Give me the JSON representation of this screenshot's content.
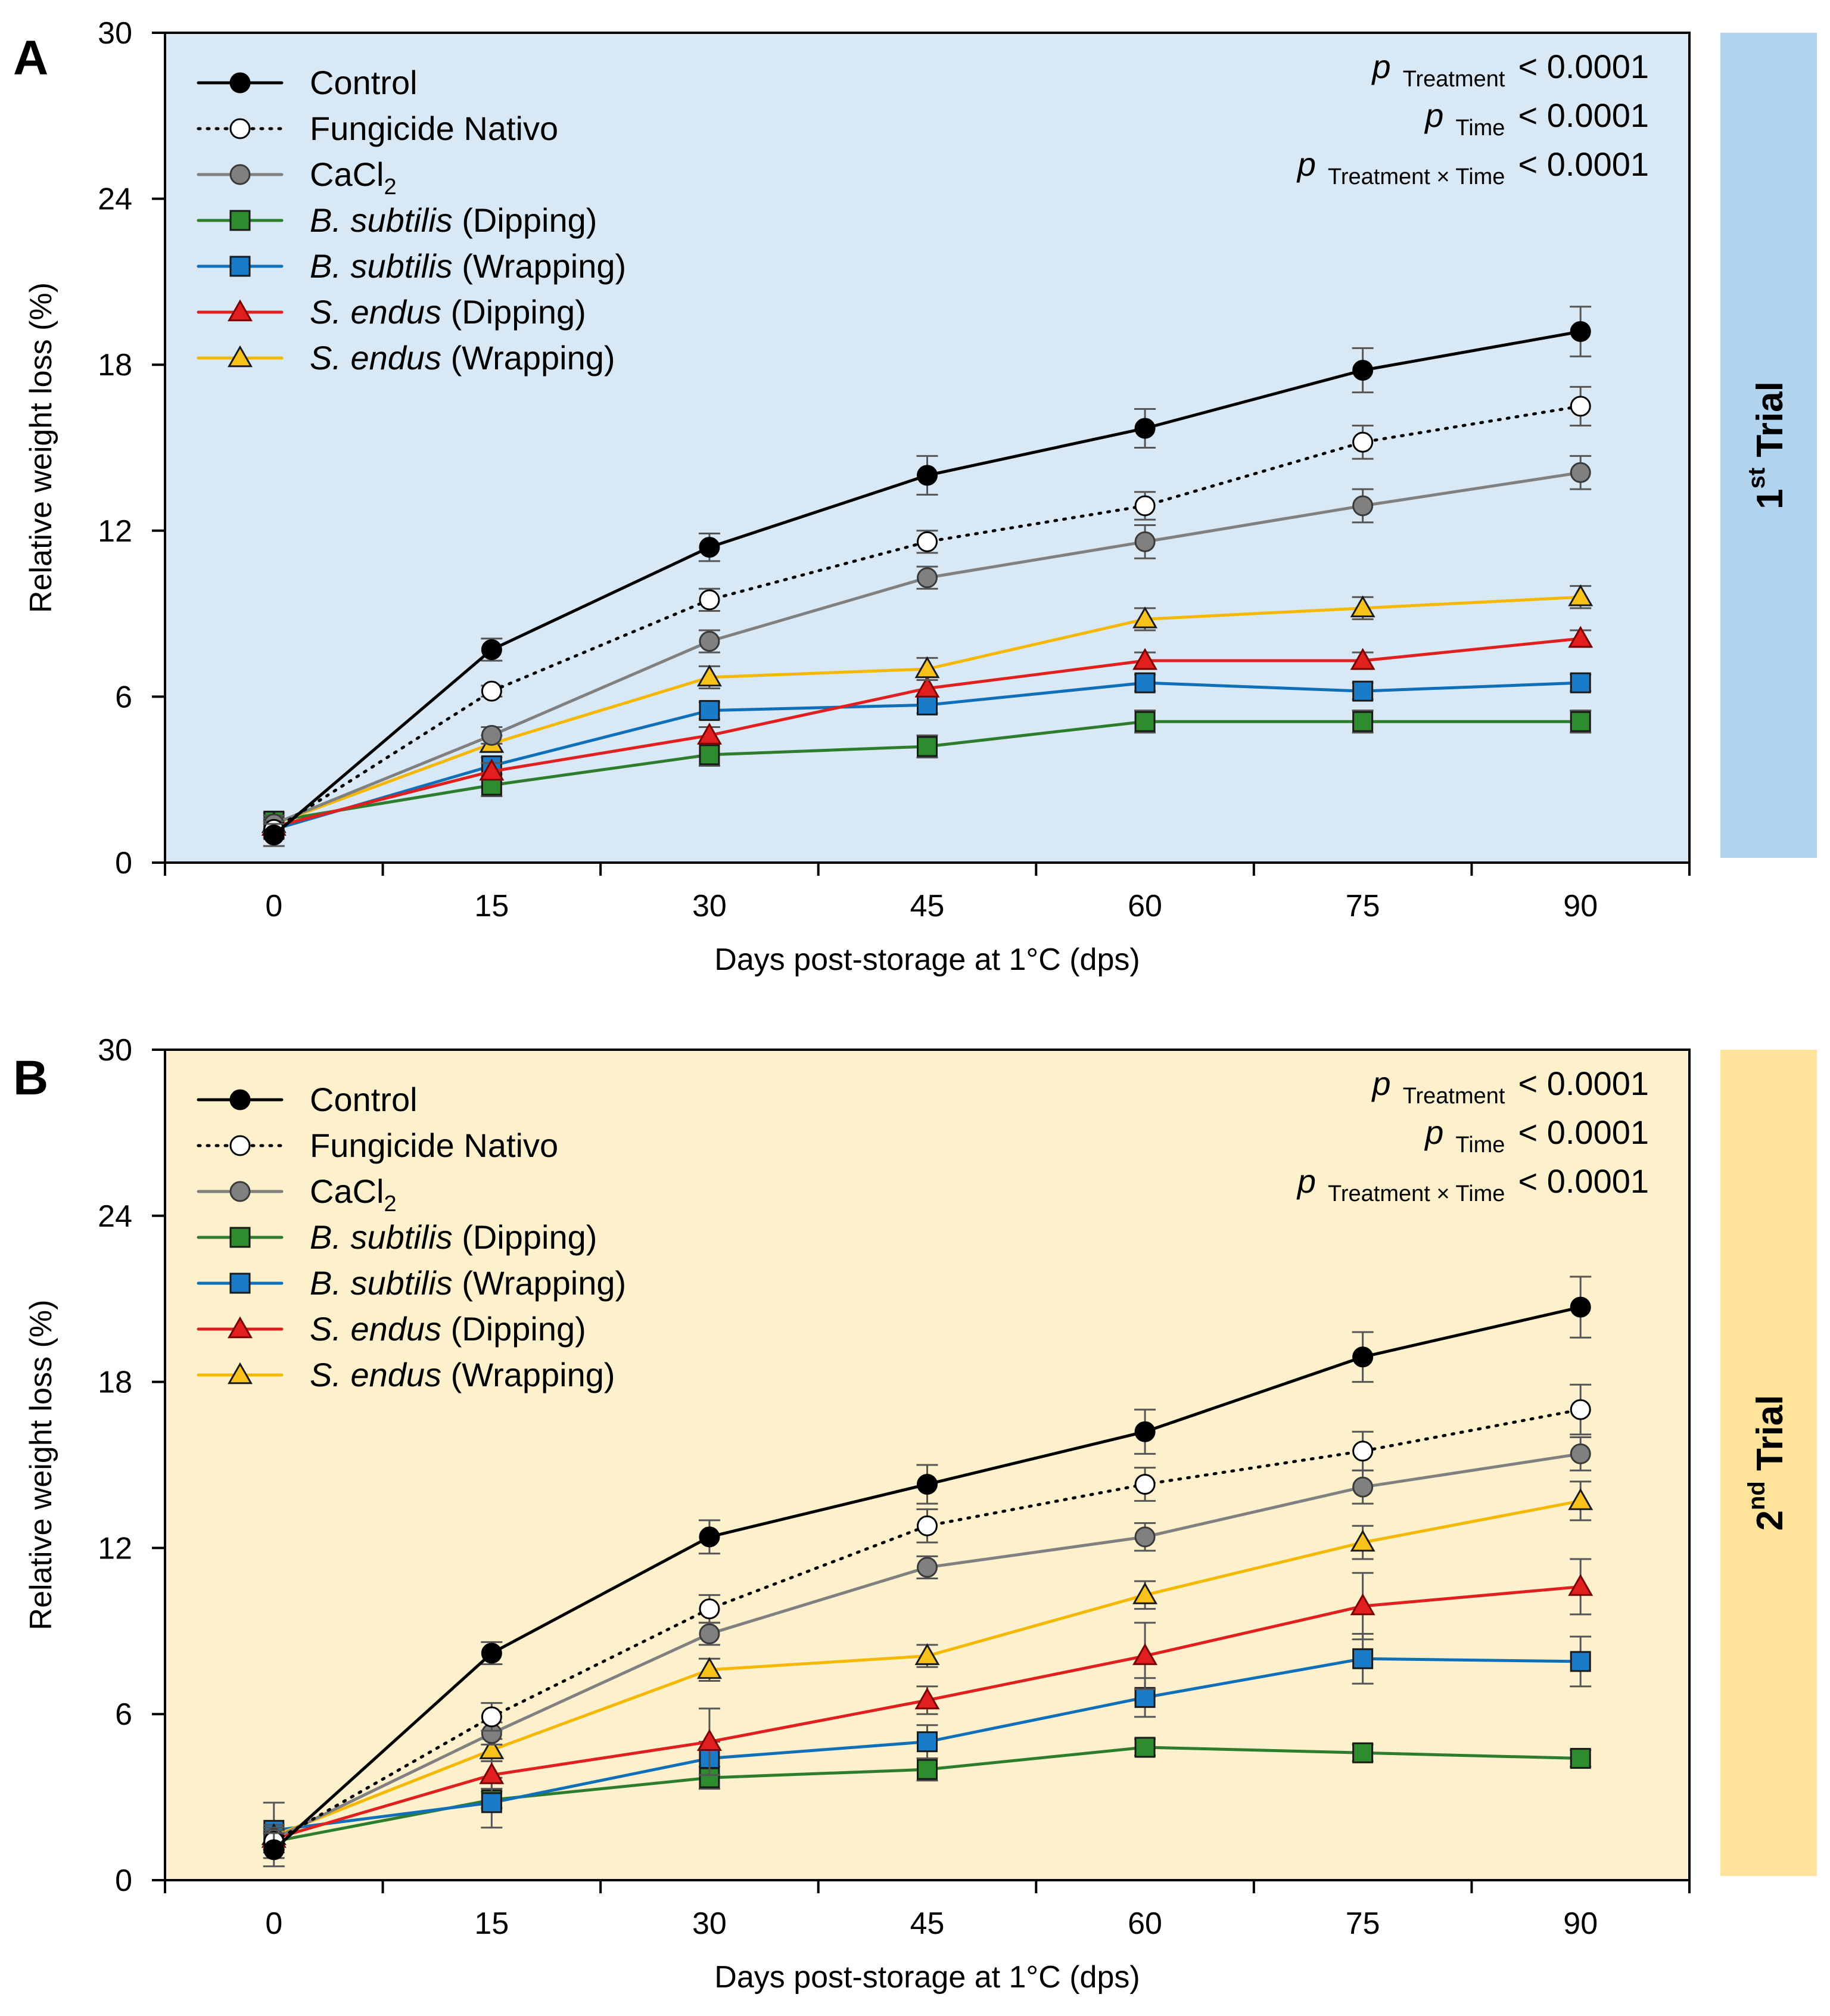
{
  "figure_colors": {
    "panel_a_bg": "#d9e8f5",
    "panel_a_strip": "#b2d3ed",
    "panel_b_bg": "#fdf0cd",
    "panel_b_strip": "#fde49a"
  },
  "chart_data": [
    {
      "type": "line",
      "panel_label": "A",
      "trial": {
        "prefix": "1",
        "sup": "st",
        "word": " Trial"
      },
      "xlabel": "Days post-storage at 1°C (dps)",
      "ylabel": "Relative weight loss (%)",
      "x": [
        0,
        15,
        30,
        45,
        60,
        75,
        90
      ],
      "xlim": [
        -7.5,
        97.5
      ],
      "ylim": [
        0,
        30
      ],
      "yticks": [
        0,
        6,
        12,
        18,
        24,
        30
      ],
      "stats": [
        {
          "p": "p",
          "sub": "Treatment",
          "value": "< 0.0001"
        },
        {
          "p": "p",
          "sub": "Time",
          "value": "< 0.0001"
        },
        {
          "p": "p",
          "sub": "Treatment × Time",
          "value": "< 0.0001"
        }
      ],
      "series": [
        {
          "key": "control",
          "name": "Control",
          "values": [
            1.0,
            7.7,
            11.4,
            14.0,
            15.7,
            17.8,
            19.2
          ],
          "errors": [
            0.4,
            0.4,
            0.5,
            0.7,
            0.7,
            0.8,
            0.9
          ]
        },
        {
          "key": "nativo",
          "name": "Fungicide Nativo",
          "values": [
            1.2,
            6.2,
            9.5,
            11.6,
            12.9,
            15.2,
            16.5
          ],
          "errors": [
            0.3,
            0.2,
            0.4,
            0.4,
            0.5,
            0.6,
            0.7
          ]
        },
        {
          "key": "cacl2",
          "name": "CaCl",
          "name_sub": "2",
          "values": [
            1.4,
            4.6,
            8.0,
            10.3,
            11.6,
            12.9,
            14.1
          ],
          "errors": [
            0.3,
            0.3,
            0.4,
            0.4,
            0.6,
            0.6,
            0.6
          ]
        },
        {
          "key": "bs_dip",
          "name_italic": "B. subtilis",
          "name": " (Dipping)",
          "values": [
            1.5,
            2.8,
            3.9,
            4.2,
            5.1,
            5.1,
            5.1
          ],
          "errors": [
            0.3,
            0.4,
            0.4,
            0.4,
            0.4,
            0.4,
            0.4
          ]
        },
        {
          "key": "bs_wrap",
          "name_italic": "B. subtilis",
          "name": " (Wrapping)",
          "values": [
            1.2,
            3.5,
            5.5,
            5.7,
            6.5,
            6.2,
            6.5
          ],
          "errors": [
            0.3,
            0.3,
            0.3,
            0.3,
            0.3,
            0.3,
            0.3
          ]
        },
        {
          "key": "se_dip",
          "name_italic": "S. endus",
          "name": " (Dipping)",
          "values": [
            1.3,
            3.3,
            4.6,
            6.3,
            7.3,
            7.3,
            8.1
          ],
          "errors": [
            0.3,
            0.3,
            0.3,
            0.3,
            0.3,
            0.3,
            0.3
          ]
        },
        {
          "key": "se_wrap",
          "name_italic": "S. endus",
          "name": " (Wrapping)",
          "values": [
            1.4,
            4.3,
            6.7,
            7.0,
            8.8,
            9.2,
            9.6
          ],
          "errors": [
            0.3,
            0.3,
            0.4,
            0.4,
            0.4,
            0.4,
            0.4
          ]
        }
      ]
    },
    {
      "type": "line",
      "panel_label": "B",
      "trial": {
        "prefix": "2",
        "sup": "nd",
        "word": " Trial"
      },
      "xlabel": "Days post-storage at 1°C (dps)",
      "ylabel": "Relative weight loss (%)",
      "x": [
        0,
        15,
        30,
        45,
        60,
        75,
        90
      ],
      "xlim": [
        -7.5,
        97.5
      ],
      "ylim": [
        0,
        30
      ],
      "yticks": [
        0,
        6,
        12,
        18,
        24,
        30
      ],
      "stats": [
        {
          "p": "p",
          "sub": "Treatment",
          "value": "< 0.0001"
        },
        {
          "p": "p",
          "sub": "Time",
          "value": "< 0.0001"
        },
        {
          "p": "p",
          "sub": "Treatment × Time",
          "value": "< 0.0001"
        }
      ],
      "series": [
        {
          "key": "control",
          "name": "Control",
          "values": [
            1.1,
            8.2,
            12.4,
            14.3,
            16.2,
            18.9,
            20.7
          ],
          "errors": [
            0.6,
            0.4,
            0.6,
            0.7,
            0.8,
            0.9,
            1.1
          ]
        },
        {
          "key": "nativo",
          "name": "Fungicide Nativo",
          "values": [
            1.4,
            5.9,
            9.8,
            12.8,
            14.3,
            15.5,
            17.0
          ],
          "errors": [
            0.4,
            0.5,
            0.5,
            0.6,
            0.6,
            0.7,
            0.9
          ]
        },
        {
          "key": "cacl2",
          "name": "CaCl",
          "name_sub": "2",
          "values": [
            1.5,
            5.3,
            8.9,
            11.3,
            12.4,
            14.2,
            15.4
          ],
          "errors": [
            0.4,
            0.4,
            0.4,
            0.4,
            0.5,
            0.6,
            0.6
          ]
        },
        {
          "key": "bs_dip",
          "name_italic": "B. subtilis",
          "name": " (Dipping)",
          "values": [
            1.4,
            2.9,
            3.7,
            4.0,
            4.8,
            4.6,
            4.4
          ],
          "errors": [
            0.3,
            0.3,
            0.4,
            0.4,
            0.3,
            0.3,
            0.3
          ]
        },
        {
          "key": "bs_wrap",
          "name_italic": "B. subtilis",
          "name": " (Wrapping)",
          "values": [
            1.8,
            2.8,
            4.4,
            5.0,
            6.6,
            8.0,
            7.9
          ],
          "errors": [
            1.0,
            0.9,
            0.6,
            0.6,
            0.7,
            0.9,
            0.9
          ]
        },
        {
          "key": "se_dip",
          "name_italic": "S. endus",
          "name": " (Dipping)",
          "values": [
            1.5,
            3.8,
            5.0,
            6.5,
            8.1,
            9.9,
            10.6
          ],
          "errors": [
            0.4,
            0.5,
            1.2,
            0.5,
            1.2,
            1.2,
            1.0
          ]
        },
        {
          "key": "se_wrap",
          "name_italic": "S. endus",
          "name": " (Wrapping)",
          "values": [
            1.6,
            4.7,
            7.6,
            8.1,
            10.3,
            12.2,
            13.7
          ],
          "errors": [
            0.4,
            0.4,
            0.4,
            0.4,
            0.5,
            0.6,
            0.7
          ]
        }
      ]
    }
  ]
}
